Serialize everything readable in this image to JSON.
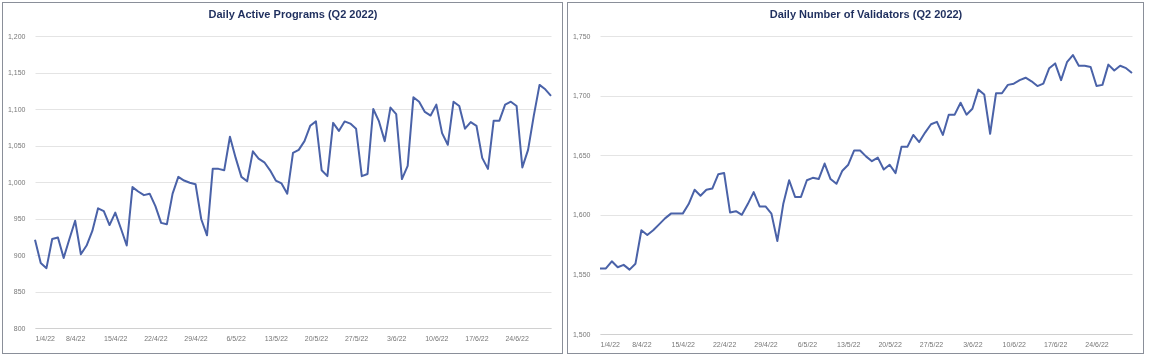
{
  "chart_data": [
    {
      "type": "line",
      "title": "Daily Active Programs (Q2 2022)",
      "grid": "y",
      "line_style": "solid",
      "x": [
        "2022-04-01",
        "2022-04-02",
        "2022-04-03",
        "2022-04-04",
        "2022-04-05",
        "2022-04-06",
        "2022-04-07",
        "2022-04-08",
        "2022-04-09",
        "2022-04-10",
        "2022-04-11",
        "2022-04-12",
        "2022-04-13",
        "2022-04-14",
        "2022-04-15",
        "2022-04-16",
        "2022-04-17",
        "2022-04-18",
        "2022-04-19",
        "2022-04-20",
        "2022-04-21",
        "2022-04-22",
        "2022-04-23",
        "2022-04-24",
        "2022-04-25",
        "2022-04-26",
        "2022-04-27",
        "2022-04-28",
        "2022-04-29",
        "2022-04-30",
        "2022-05-01",
        "2022-05-02",
        "2022-05-03",
        "2022-05-04",
        "2022-05-05",
        "2022-05-06",
        "2022-05-07",
        "2022-05-08",
        "2022-05-09",
        "2022-05-10",
        "2022-05-11",
        "2022-05-12",
        "2022-05-13",
        "2022-05-14",
        "2022-05-15",
        "2022-05-16",
        "2022-05-17",
        "2022-05-18",
        "2022-05-19",
        "2022-05-20",
        "2022-05-21",
        "2022-05-22",
        "2022-05-23",
        "2022-05-24",
        "2022-05-25",
        "2022-05-26",
        "2022-05-27",
        "2022-05-28",
        "2022-05-29",
        "2022-05-30",
        "2022-05-31",
        "2022-06-01",
        "2022-06-02",
        "2022-06-03",
        "2022-06-04",
        "2022-06-05",
        "2022-06-06",
        "2022-06-07",
        "2022-06-08",
        "2022-06-09",
        "2022-06-10",
        "2022-06-11",
        "2022-06-12",
        "2022-06-13",
        "2022-06-14",
        "2022-06-15",
        "2022-06-16",
        "2022-06-17",
        "2022-06-18",
        "2022-06-19",
        "2022-06-20",
        "2022-06-21",
        "2022-06-22",
        "2022-06-23",
        "2022-06-24",
        "2022-06-25",
        "2022-06-26",
        "2022-06-27",
        "2022-06-28",
        "2022-06-29",
        "2022-06-30"
      ],
      "series": [
        {
          "color": "#4a62a8",
          "values": [
            921,
            889,
            882,
            922,
            924,
            896,
            922,
            947,
            901,
            913,
            933,
            964,
            960,
            941,
            958,
            936,
            913,
            993,
            987,
            982,
            984,
            967,
            944,
            942,
            984,
            1007,
            1002,
            999,
            997,
            949,
            927,
            1018,
            1018,
            1016,
            1062,
            1033,
            1007,
            1001,
            1042,
            1032,
            1027,
            1016,
            1002,
            998,
            984,
            1040,
            1044,
            1056,
            1077,
            1083,
            1016,
            1008,
            1081,
            1070,
            1083,
            1080,
            1073,
            1008,
            1011,
            1100,
            1083,
            1056,
            1102,
            1093,
            1004,
            1022,
            1116,
            1110,
            1096,
            1091,
            1106,
            1067,
            1051,
            1110,
            1104,
            1073,
            1082,
            1077,
            1033,
            1018,
            1084,
            1084,
            1106,
            1110,
            1104,
            1020,
            1044,
            1091,
            1133,
            1127,
            1118
          ]
        }
      ],
      "xlim": [
        "2022-04-01",
        "2022-06-30"
      ],
      "xticks": [
        {
          "value": "2022-04-01",
          "label": "1/4/22"
        },
        {
          "value": "2022-04-08",
          "label": "8/4/22"
        },
        {
          "value": "2022-04-15",
          "label": "15/4/22"
        },
        {
          "value": "2022-04-22",
          "label": "22/4/22"
        },
        {
          "value": "2022-04-29",
          "label": "29/4/22"
        },
        {
          "value": "2022-05-06",
          "label": "6/5/22"
        },
        {
          "value": "2022-05-13",
          "label": "13/5/22"
        },
        {
          "value": "2022-05-20",
          "label": "20/5/22"
        },
        {
          "value": "2022-05-27",
          "label": "27/5/22"
        },
        {
          "value": "2022-06-03",
          "label": "3/6/22"
        },
        {
          "value": "2022-06-10",
          "label": "10/6/22"
        },
        {
          "value": "2022-06-17",
          "label": "17/6/22"
        },
        {
          "value": "2022-06-24",
          "label": "24/6/22"
        }
      ],
      "ylim": [
        800,
        1200
      ],
      "yticks": [
        800,
        850,
        900,
        950,
        {
          "value": 1000,
          "label": "1,000"
        },
        {
          "value": 1050,
          "label": "1,050"
        },
        {
          "value": 1100,
          "label": "1,100"
        },
        {
          "value": 1150,
          "label": "1,150"
        },
        {
          "value": 1200,
          "label": "1,200"
        }
      ]
    },
    {
      "type": "line",
      "title": "Daily Number of Validators (Q2 2022)",
      "grid": "y",
      "line_style": "solid",
      "x": [
        "2022-04-01",
        "2022-04-02",
        "2022-04-03",
        "2022-04-04",
        "2022-04-05",
        "2022-04-06",
        "2022-04-07",
        "2022-04-08",
        "2022-04-09",
        "2022-04-10",
        "2022-04-11",
        "2022-04-12",
        "2022-04-13",
        "2022-04-14",
        "2022-04-15",
        "2022-04-16",
        "2022-04-17",
        "2022-04-18",
        "2022-04-19",
        "2022-04-20",
        "2022-04-21",
        "2022-04-22",
        "2022-04-23",
        "2022-04-24",
        "2022-04-25",
        "2022-04-26",
        "2022-04-27",
        "2022-04-28",
        "2022-04-29",
        "2022-04-30",
        "2022-05-01",
        "2022-05-02",
        "2022-05-03",
        "2022-05-04",
        "2022-05-05",
        "2022-05-06",
        "2022-05-07",
        "2022-05-08",
        "2022-05-09",
        "2022-05-10",
        "2022-05-11",
        "2022-05-12",
        "2022-05-13",
        "2022-05-14",
        "2022-05-15",
        "2022-05-16",
        "2022-05-17",
        "2022-05-18",
        "2022-05-19",
        "2022-05-20",
        "2022-05-21",
        "2022-05-22",
        "2022-05-23",
        "2022-05-24",
        "2022-05-25",
        "2022-05-26",
        "2022-05-27",
        "2022-05-28",
        "2022-05-29",
        "2022-05-30",
        "2022-05-31",
        "2022-06-01",
        "2022-06-02",
        "2022-06-03",
        "2022-06-04",
        "2022-06-05",
        "2022-06-06",
        "2022-06-07",
        "2022-06-08",
        "2022-06-09",
        "2022-06-10",
        "2022-06-11",
        "2022-06-12",
        "2022-06-13",
        "2022-06-14",
        "2022-06-15",
        "2022-06-16",
        "2022-06-17",
        "2022-06-18",
        "2022-06-19",
        "2022-06-20",
        "2022-06-21",
        "2022-06-22",
        "2022-06-23",
        "2022-06-24",
        "2022-06-25",
        "2022-06-26",
        "2022-06-27",
        "2022-06-28",
        "2022-06-29",
        "2022-06-30"
      ],
      "series": [
        {
          "color": "#4a62a8",
          "values": [
            1555,
            1555,
            1561,
            1556,
            1558,
            1554,
            1559,
            1587,
            1583,
            1587,
            1592,
            1597,
            1601,
            1601,
            1601,
            1609,
            1621,
            1616,
            1621,
            1622,
            1634,
            1635,
            1602,
            1603,
            1600,
            1609,
            1619,
            1607,
            1607,
            1601,
            1578,
            1609,
            1629,
            1615,
            1615,
            1629,
            1631,
            1630,
            1643,
            1630,
            1626,
            1637,
            1642,
            1654,
            1654,
            1649,
            1645,
            1648,
            1638,
            1642,
            1635,
            1657,
            1657,
            1667,
            1661,
            1669,
            1676,
            1678,
            1667,
            1684,
            1684,
            1694,
            1684,
            1689,
            1705,
            1701,
            1668,
            1702,
            1702,
            1709,
            1710,
            1713,
            1715,
            1712,
            1708,
            1710,
            1723,
            1727,
            1713,
            1728,
            1734,
            1725,
            1725,
            1724,
            1708,
            1709,
            1726,
            1721,
            1725,
            1723,
            1719
          ]
        }
      ],
      "xlim": [
        "2022-04-01",
        "2022-06-30"
      ],
      "xticks": [
        {
          "value": "2022-04-01",
          "label": "1/4/22"
        },
        {
          "value": "2022-04-08",
          "label": "8/4/22"
        },
        {
          "value": "2022-04-15",
          "label": "15/4/22"
        },
        {
          "value": "2022-04-22",
          "label": "22/4/22"
        },
        {
          "value": "2022-04-29",
          "label": "29/4/22"
        },
        {
          "value": "2022-05-06",
          "label": "6/5/22"
        },
        {
          "value": "2022-05-13",
          "label": "13/5/22"
        },
        {
          "value": "2022-05-20",
          "label": "20/5/22"
        },
        {
          "value": "2022-05-27",
          "label": "27/5/22"
        },
        {
          "value": "2022-06-03",
          "label": "3/6/22"
        },
        {
          "value": "2022-06-10",
          "label": "10/6/22"
        },
        {
          "value": "2022-06-17",
          "label": "17/6/22"
        },
        {
          "value": "2022-06-24",
          "label": "24/6/22"
        }
      ],
      "ylim": [
        1500,
        1750
      ],
      "yticks": [
        {
          "value": 1500,
          "label": "1,500"
        },
        {
          "value": 1550,
          "label": "1,550"
        },
        {
          "value": 1600,
          "label": "1,600"
        },
        {
          "value": 1650,
          "label": "1,650"
        },
        {
          "value": 1700,
          "label": "1,700"
        },
        {
          "value": 1750,
          "label": "1,750"
        }
      ]
    }
  ]
}
